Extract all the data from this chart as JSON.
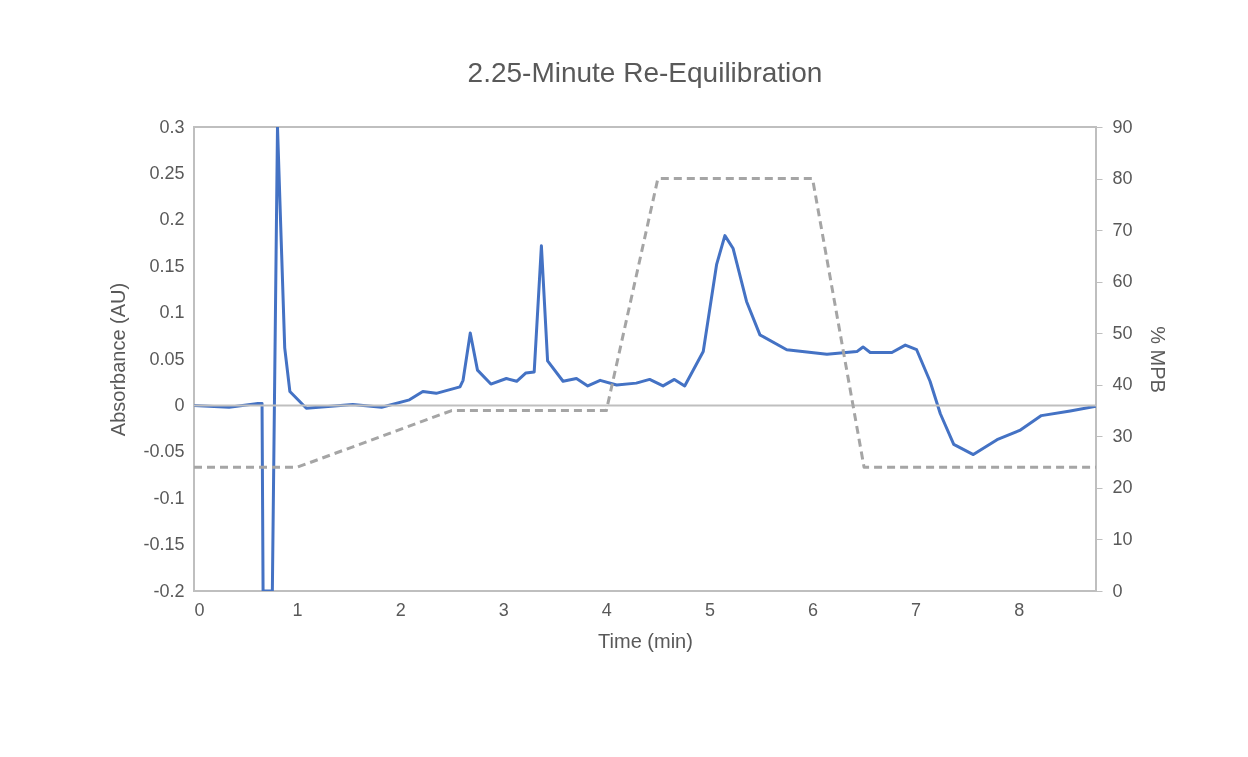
{
  "chart_data": {
    "type": "line",
    "title": "2.25-Minute Re-Equilibration",
    "xlabel": "Time (min)",
    "ylabel": "Absorbance (AU)",
    "y2label": "% MPB",
    "xlim": [
      0,
      8.75
    ],
    "xticks": [
      0,
      1,
      2,
      3,
      4,
      5,
      6,
      7,
      8
    ],
    "ylim": [
      -0.2,
      0.3
    ],
    "yticks": [
      -0.2,
      -0.15,
      -0.1,
      -0.05,
      0,
      0.05,
      0.1,
      0.15,
      0.2,
      0.25,
      0.3
    ],
    "y2lim": [
      0,
      90
    ],
    "y2ticks": [
      0,
      10,
      20,
      30,
      40,
      50,
      60,
      70,
      80,
      90
    ],
    "grid": false,
    "ref_lines": [
      {
        "axis": "y",
        "value": 0,
        "color": "#bfbfbf"
      }
    ],
    "series": [
      {
        "color": "#4472c4",
        "line_style": "solid",
        "x": [
          0,
          0.34,
          0.62,
          0.66,
          0.67,
          0.76,
          0.81,
          0.88,
          0.93,
          1.09,
          1.54,
          1.82,
          2.09,
          2.22,
          2.35,
          2.58,
          2.61,
          2.68,
          2.75,
          2.88,
          3.03,
          3.13,
          3.22,
          3.3,
          3.37,
          3.43,
          3.58,
          3.71,
          3.82,
          3.94,
          4.1,
          4.29,
          4.42,
          4.55,
          4.66,
          4.76,
          4.94,
          5.07,
          5.15,
          5.23,
          5.36,
          5.49,
          5.75,
          6.14,
          6.43,
          6.49,
          6.56,
          6.77,
          6.9,
          7.01,
          7.14,
          7.24,
          7.37,
          7.56,
          7.79,
          8.01,
          8.22,
          8.5,
          8.75
        ],
        "values": [
          0,
          -0.002,
          0.002,
          0.002,
          -0.2,
          -0.2,
          0.3,
          0.062,
          0.015,
          -0.003,
          0.001,
          -0.002,
          0.006,
          0.015,
          0.013,
          0.02,
          0.027,
          0.078,
          0.038,
          0.023,
          0.029,
          0.026,
          0.035,
          0.036,
          0.172,
          0.048,
          0.026,
          0.029,
          0.021,
          0.027,
          0.022,
          0.024,
          0.028,
          0.021,
          0.028,
          0.021,
          0.058,
          0.152,
          0.183,
          0.169,
          0.112,
          0.076,
          0.06,
          0.055,
          0.058,
          0.063,
          0.057,
          0.057,
          0.065,
          0.06,
          0.026,
          -0.009,
          -0.042,
          -0.053,
          -0.037,
          -0.027,
          -0.011,
          -0.006,
          -0.001
        ]
      },
      {
        "color": "#a5a5a5",
        "line_style": "dashed",
        "axis": "y2",
        "x": [
          0,
          1,
          2.5,
          4,
          4.5,
          6,
          6.5,
          8.75
        ],
        "values": [
          24,
          24,
          35,
          35,
          80,
          80,
          24,
          24
        ]
      }
    ]
  }
}
